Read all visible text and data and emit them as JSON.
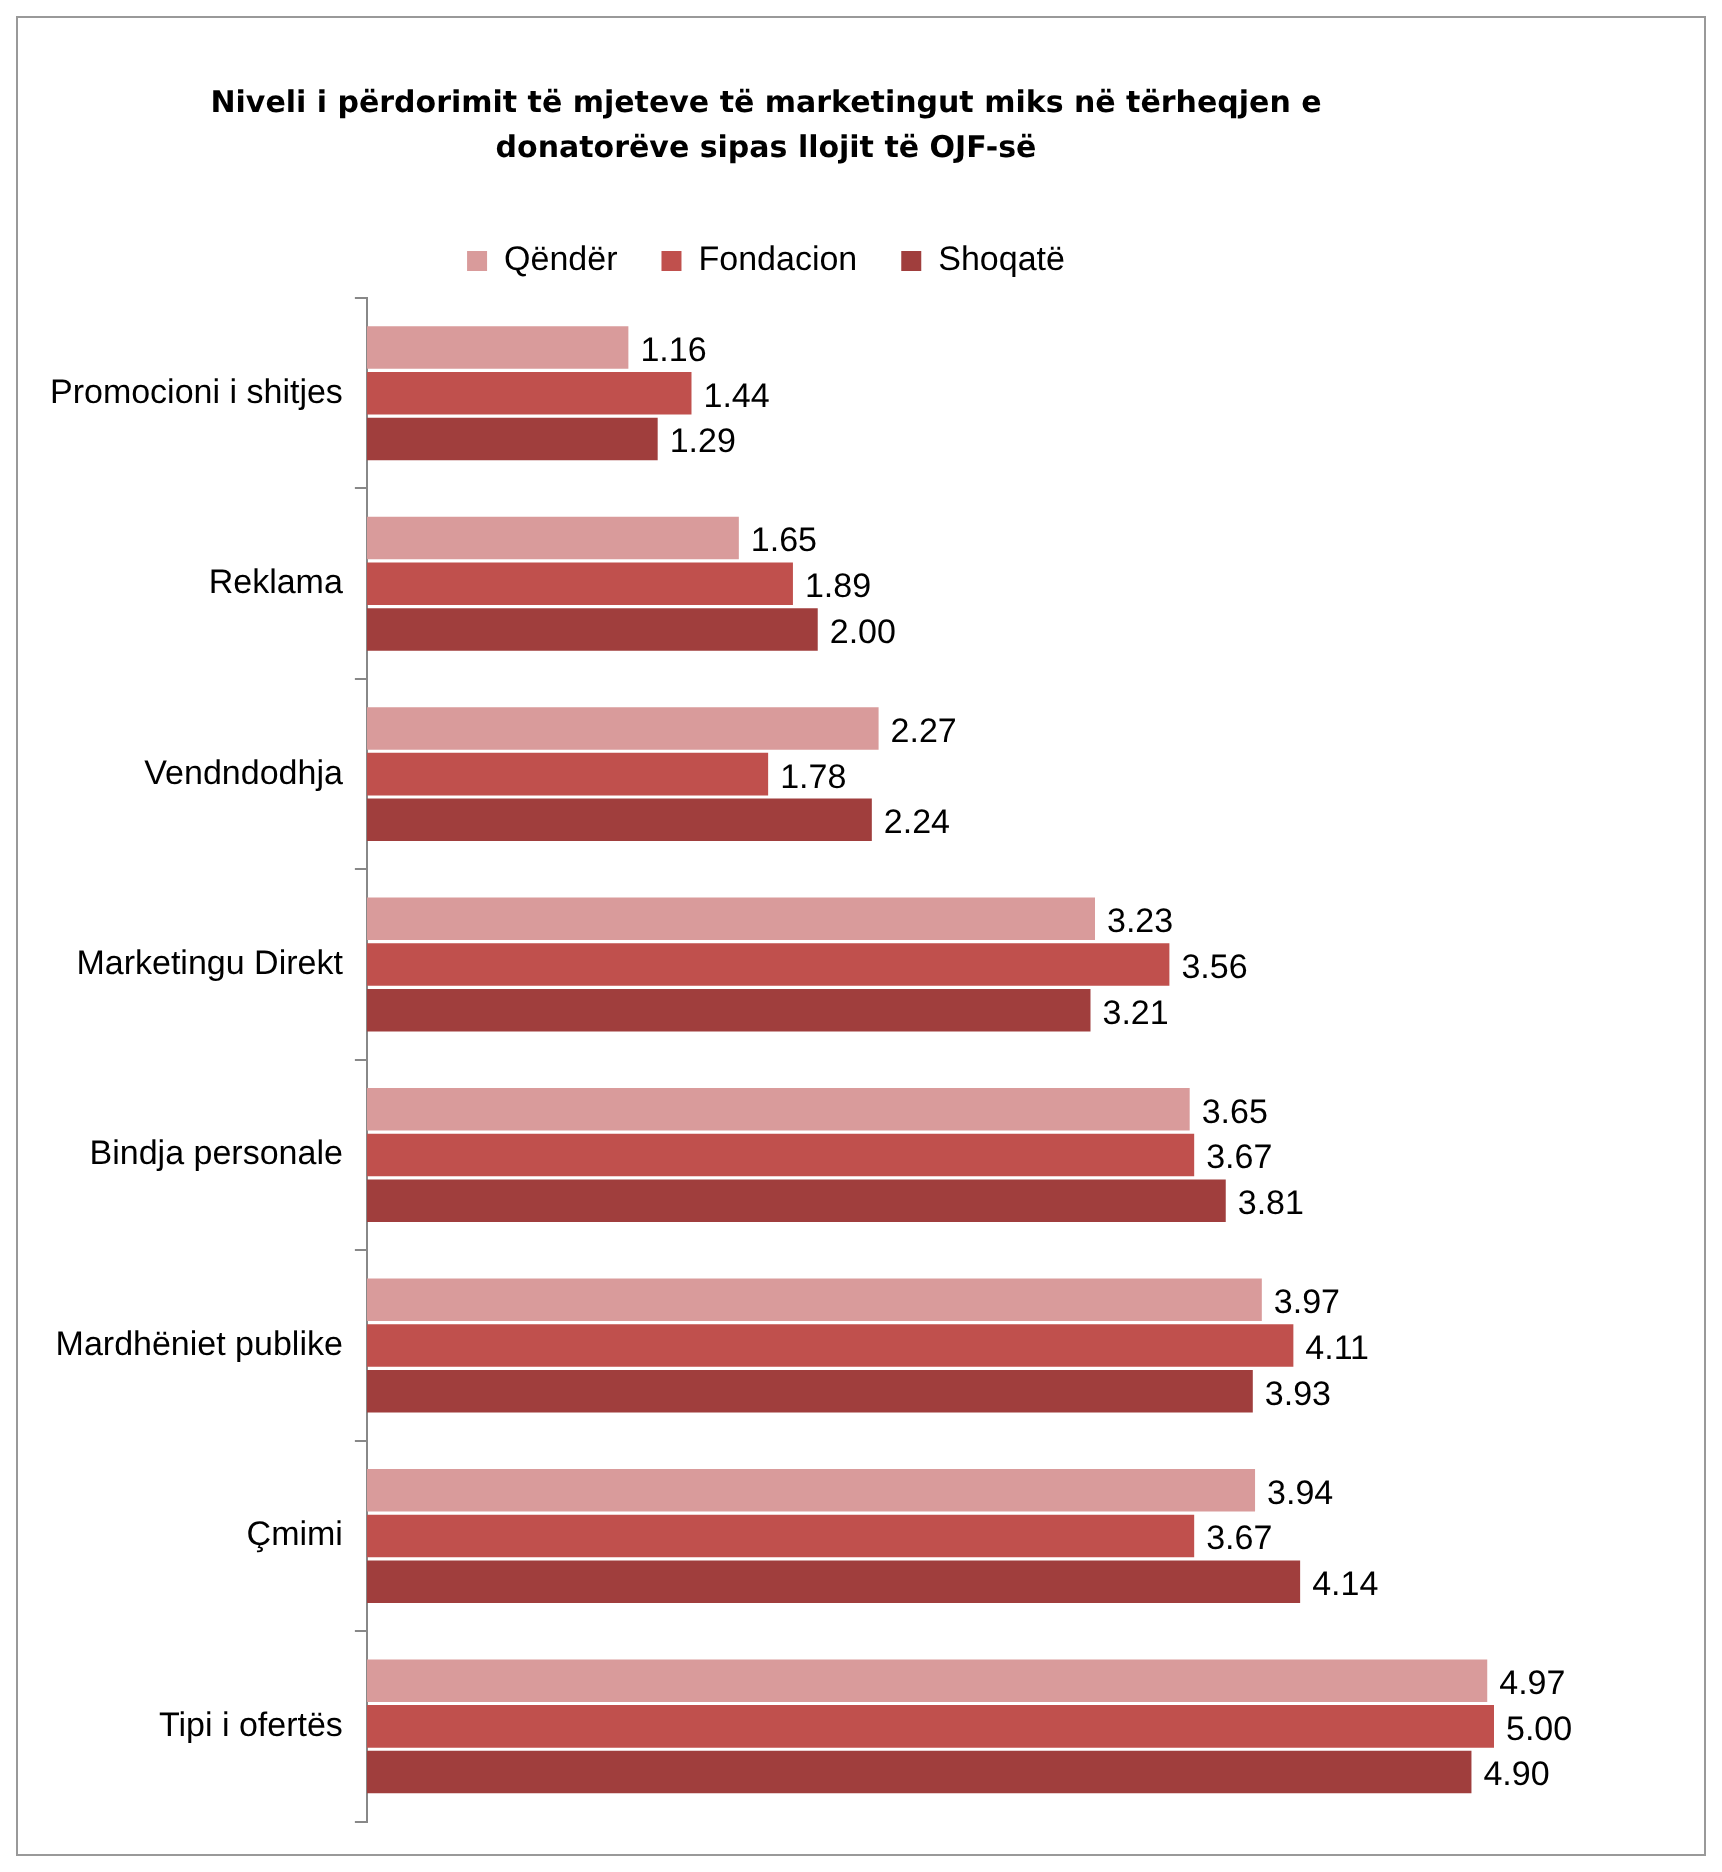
{
  "chart_data": {
    "type": "bar",
    "orientation": "horizontal",
    "title": "Niveli i përdorimit të mjeteve të marketingut miks në tërheqjen e donatorëve sipas llojit të OJF-së",
    "categories": [
      "Promocioni i shitjes",
      "Reklama",
      "Vendndodhja",
      "Marketingu Direkt",
      "Bindja personale",
      "Mardhëniet publike",
      "Çmimi",
      "Tipi i ofertës"
    ],
    "series": [
      {
        "name": "Qëndër",
        "color": "#d99b9b",
        "values": [
          1.16,
          1.65,
          2.27,
          3.23,
          3.65,
          3.97,
          3.94,
          4.97
        ],
        "value_labels": [
          "1.16",
          "1.65",
          "2.27",
          "3.23",
          "3.65",
          "3.97",
          "3.94",
          "4.97"
        ]
      },
      {
        "name": "Fondacion",
        "color": "#c0504d",
        "values": [
          1.44,
          1.89,
          1.78,
          3.56,
          3.67,
          4.11,
          3.67,
          5.0
        ],
        "value_labels": [
          "1.44",
          "1.89",
          "1.78",
          "3.56",
          "3.67",
          "4.11",
          "3.67",
          "5.00"
        ]
      },
      {
        "name": "Shoqatë",
        "color": "#a03e3d",
        "values": [
          1.29,
          2.0,
          2.24,
          3.21,
          3.81,
          3.93,
          4.14,
          4.9
        ],
        "value_labels": [
          "1.29",
          "2.00",
          "2.24",
          "3.21",
          "3.81",
          "3.93",
          "4.14",
          "4.90"
        ]
      }
    ],
    "legend": "top",
    "tick_labels": "y"
  }
}
